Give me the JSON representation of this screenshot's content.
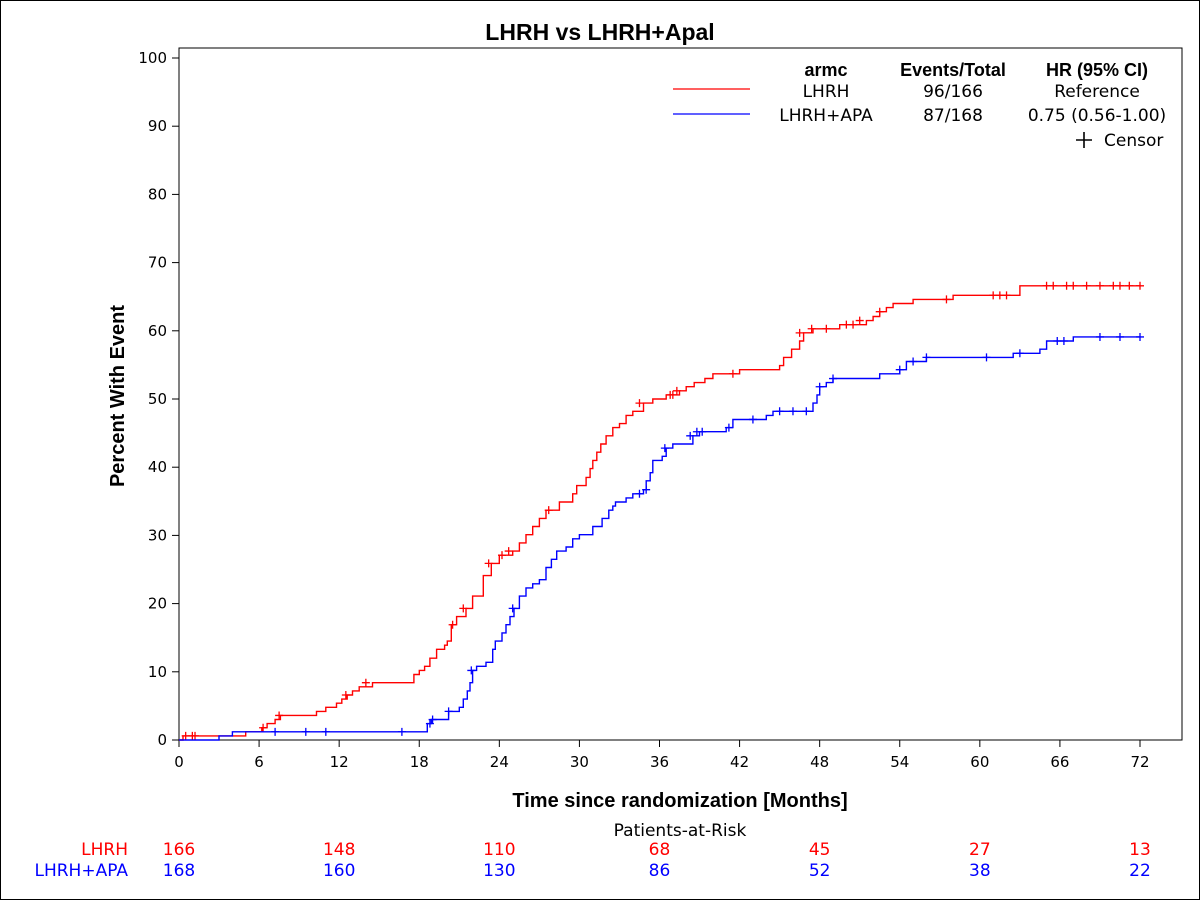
{
  "chart_data": {
    "type": "line",
    "title": "LHRH vs LHRH+Apal",
    "xlabel": "Time since randomization [Months]",
    "ylabel": "Percent With Event",
    "xlim": [
      0,
      72
    ],
    "ylim": [
      0,
      100
    ],
    "x_ticks": [
      "0",
      "6",
      "12",
      "18",
      "24",
      "30",
      "36",
      "42",
      "48",
      "54",
      "60",
      "66",
      "72"
    ],
    "y_ticks": [
      "0",
      "10",
      "20",
      "30",
      "40",
      "50",
      "60",
      "70",
      "80",
      "90",
      "100"
    ],
    "grid": false,
    "legend": {
      "placement": "top-right",
      "headers": {
        "arm": "armc",
        "events": "Events/Total",
        "hr": "HR (95% CI)"
      },
      "censor_label": "Censor"
    },
    "series": [
      {
        "name": "LHRH",
        "color": "#ff0000",
        "events_total": "96/166",
        "hr": "Reference",
        "steps": [
          [
            0,
            0
          ],
          [
            0.3,
            0.6
          ],
          [
            2,
            0.6
          ],
          [
            5,
            1.2
          ],
          [
            6.2,
            1.8
          ],
          [
            6.6,
            2.4
          ],
          [
            7.2,
            3.0
          ],
          [
            7.6,
            3.6
          ],
          [
            9,
            3.6
          ],
          [
            10.3,
            4.2
          ],
          [
            11,
            4.8
          ],
          [
            11.8,
            5.4
          ],
          [
            12.2,
            6.0
          ],
          [
            12.6,
            6.6
          ],
          [
            13,
            7.2
          ],
          [
            13.5,
            7.8
          ],
          [
            14.5,
            8.4
          ],
          [
            17,
            8.4
          ],
          [
            17.6,
            9.6
          ],
          [
            18,
            10.2
          ],
          [
            18.4,
            10.8
          ],
          [
            18.8,
            12.0
          ],
          [
            19.3,
            13.3
          ],
          [
            19.9,
            13.9
          ],
          [
            20.1,
            14.5
          ],
          [
            20.4,
            16.9
          ],
          [
            20.8,
            18.1
          ],
          [
            21.5,
            19.3
          ],
          [
            22,
            21.1
          ],
          [
            22.8,
            24.1
          ],
          [
            23.4,
            25.9
          ],
          [
            24,
            27.1
          ],
          [
            25,
            27.7
          ],
          [
            25.5,
            28.9
          ],
          [
            26,
            30.1
          ],
          [
            26.5,
            31.3
          ],
          [
            27,
            32.5
          ],
          [
            27.5,
            33.7
          ],
          [
            28.5,
            34.9
          ],
          [
            29.5,
            36.1
          ],
          [
            29.8,
            37.3
          ],
          [
            30.5,
            38.5
          ],
          [
            30.8,
            39.8
          ],
          [
            31,
            41.0
          ],
          [
            31.3,
            42.2
          ],
          [
            31.6,
            43.4
          ],
          [
            32,
            44.6
          ],
          [
            32.5,
            45.8
          ],
          [
            33,
            46.4
          ],
          [
            33.5,
            47.6
          ],
          [
            34,
            48.2
          ],
          [
            34.8,
            49.4
          ],
          [
            35.5,
            50.0
          ],
          [
            36.5,
            50.6
          ],
          [
            37.5,
            51.2
          ],
          [
            38,
            51.8
          ],
          [
            38.6,
            52.4
          ],
          [
            39.4,
            53.0
          ],
          [
            40,
            53.7
          ],
          [
            41,
            53.7
          ],
          [
            42,
            54.3
          ],
          [
            45,
            54.9
          ],
          [
            45.3,
            56.1
          ],
          [
            45.9,
            57.3
          ],
          [
            46.5,
            58.5
          ],
          [
            46.8,
            59.7
          ],
          [
            47.5,
            60.3
          ],
          [
            49,
            60.3
          ],
          [
            49.5,
            60.9
          ],
          [
            51.5,
            61.5
          ],
          [
            52,
            62.1
          ],
          [
            52.5,
            62.8
          ],
          [
            53,
            63.4
          ],
          [
            53.5,
            64.0
          ],
          [
            54,
            64.0
          ],
          [
            55,
            64.6
          ],
          [
            58,
            65.2
          ],
          [
            59,
            65.2
          ],
          [
            63,
            66.6
          ],
          [
            72,
            66.6
          ]
        ],
        "censors": [
          [
            0.5,
            0.6
          ],
          [
            1,
            0.6
          ],
          [
            1.2,
            0.6
          ],
          [
            6.3,
            1.8
          ],
          [
            7.5,
            3.6
          ],
          [
            12.5,
            6.6
          ],
          [
            14,
            8.4
          ],
          [
            20.5,
            16.9
          ],
          [
            21.3,
            19.3
          ],
          [
            23.2,
            25.9
          ],
          [
            24.2,
            27.1
          ],
          [
            24.7,
            27.7
          ],
          [
            27.7,
            33.7
          ],
          [
            34.5,
            49.4
          ],
          [
            36.8,
            50.6
          ],
          [
            37,
            50.6
          ],
          [
            37.3,
            51.2
          ],
          [
            41.5,
            53.7
          ],
          [
            46.5,
            59.7
          ],
          [
            47.4,
            60.3
          ],
          [
            48.5,
            60.3
          ],
          [
            50,
            60.9
          ],
          [
            50.5,
            60.9
          ],
          [
            51,
            61.5
          ],
          [
            52.5,
            62.8
          ],
          [
            57.5,
            64.6
          ],
          [
            61,
            65.2
          ],
          [
            61.5,
            65.2
          ],
          [
            62,
            65.2
          ],
          [
            65,
            66.6
          ],
          [
            65.5,
            66.6
          ],
          [
            66.5,
            66.6
          ],
          [
            67,
            66.6
          ],
          [
            68,
            66.6
          ],
          [
            69,
            66.6
          ],
          [
            70,
            66.6
          ],
          [
            70.5,
            66.6
          ],
          [
            71.2,
            66.6
          ],
          [
            72,
            66.6
          ]
        ],
        "at_risk": [
          166,
          148,
          110,
          68,
          45,
          27,
          13
        ]
      },
      {
        "name": "LHRH+APA",
        "color": "#0000ff",
        "events_total": "87/168",
        "hr": "0.75 (0.56-1.00)",
        "steps": [
          [
            0,
            0
          ],
          [
            3,
            0.6
          ],
          [
            4,
            1.2
          ],
          [
            18.3,
            1.2
          ],
          [
            18.6,
            2.4
          ],
          [
            18.9,
            3.0
          ],
          [
            20,
            3.0
          ],
          [
            20.2,
            4.2
          ],
          [
            21,
            4.8
          ],
          [
            21.3,
            6.0
          ],
          [
            21.6,
            7.2
          ],
          [
            21.8,
            8.4
          ],
          [
            22,
            10.2
          ],
          [
            22.3,
            10.8
          ],
          [
            23,
            11.4
          ],
          [
            23.5,
            13.3
          ],
          [
            23.7,
            14.5
          ],
          [
            24.2,
            15.7
          ],
          [
            24.5,
            16.9
          ],
          [
            24.8,
            18.1
          ],
          [
            25.1,
            19.3
          ],
          [
            25.5,
            21.1
          ],
          [
            26,
            22.3
          ],
          [
            26.5,
            22.9
          ],
          [
            27,
            23.5
          ],
          [
            27.5,
            25.3
          ],
          [
            27.9,
            26.5
          ],
          [
            28.3,
            27.7
          ],
          [
            29,
            28.3
          ],
          [
            29.5,
            29.5
          ],
          [
            30,
            30.1
          ],
          [
            31,
            31.3
          ],
          [
            31.7,
            32.5
          ],
          [
            32.2,
            33.7
          ],
          [
            32.5,
            34.3
          ],
          [
            32.7,
            34.9
          ],
          [
            33.5,
            35.5
          ],
          [
            34,
            36.1
          ],
          [
            34.8,
            36.7
          ],
          [
            35,
            38.0
          ],
          [
            35.3,
            39.2
          ],
          [
            35.5,
            41.0
          ],
          [
            36.2,
            41.6
          ],
          [
            36.5,
            42.8
          ],
          [
            37,
            43.4
          ],
          [
            38,
            43.4
          ],
          [
            38.5,
            44.6
          ],
          [
            39,
            45.2
          ],
          [
            40,
            45.2
          ],
          [
            41,
            45.8
          ],
          [
            41.5,
            47.0
          ],
          [
            43,
            47.0
          ],
          [
            44,
            47.6
          ],
          [
            44.5,
            48.2
          ],
          [
            47,
            48.2
          ],
          [
            47.5,
            49.4
          ],
          [
            47.8,
            50.6
          ],
          [
            48,
            51.8
          ],
          [
            48.5,
            52.4
          ],
          [
            49,
            53.0
          ],
          [
            52.5,
            53.7
          ],
          [
            54,
            54.3
          ],
          [
            54.5,
            55.5
          ],
          [
            55.5,
            55.5
          ],
          [
            56,
            56.1
          ],
          [
            62.5,
            56.7
          ],
          [
            64.5,
            57.3
          ],
          [
            65,
            58.5
          ],
          [
            67,
            59.1
          ],
          [
            72,
            59.1
          ]
        ],
        "censors": [
          [
            7.2,
            1.2
          ],
          [
            9.5,
            1.2
          ],
          [
            11,
            1.2
          ],
          [
            16.7,
            1.2
          ],
          [
            18.8,
            2.4
          ],
          [
            19,
            3.0
          ],
          [
            20.2,
            4.2
          ],
          [
            21.9,
            10.2
          ],
          [
            25,
            19.3
          ],
          [
            34.5,
            36.1
          ],
          [
            35,
            36.7
          ],
          [
            36.4,
            42.8
          ],
          [
            38.3,
            44.6
          ],
          [
            38.8,
            45.2
          ],
          [
            39.2,
            45.2
          ],
          [
            41.2,
            45.8
          ],
          [
            43,
            47.0
          ],
          [
            45,
            48.2
          ],
          [
            46,
            48.2
          ],
          [
            47,
            48.2
          ],
          [
            48,
            51.8
          ],
          [
            49,
            53.0
          ],
          [
            54,
            54.3
          ],
          [
            55,
            55.5
          ],
          [
            56,
            56.1
          ],
          [
            60.5,
            56.1
          ],
          [
            63,
            56.7
          ],
          [
            65.8,
            58.5
          ],
          [
            66.3,
            58.5
          ],
          [
            69,
            59.1
          ],
          [
            70.5,
            59.1
          ],
          [
            72,
            59.1
          ]
        ],
        "at_risk": [
          168,
          160,
          130,
          86,
          52,
          38,
          22
        ]
      }
    ],
    "risk_table": {
      "title": "Patients-at-Risk",
      "x": [
        0,
        12,
        24,
        36,
        48,
        60,
        72
      ]
    }
  }
}
